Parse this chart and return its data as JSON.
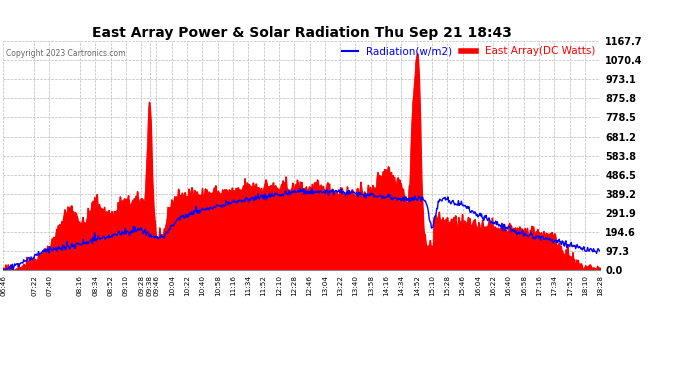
{
  "title": "East Array Power & Solar Radiation Thu Sep 21 18:43",
  "copyright": "Copyright 2023 Cartronics.com",
  "legend_radiation": "Radiation(w/m2)",
  "legend_array": "East Array(DC Watts)",
  "ylabel_right_values": [
    1167.7,
    1070.4,
    973.1,
    875.8,
    778.5,
    681.2,
    583.8,
    486.5,
    389.2,
    291.9,
    194.6,
    97.3,
    0.0
  ],
  "ymax": 1167.7,
  "ymin": 0.0,
  "background_color": "#ffffff",
  "plot_bg_color": "#ffffff",
  "grid_color": "#bbbbbb",
  "fill_color": "#ff0000",
  "line_color_radiation": "#0000ff",
  "line_color_array": "#ff0000",
  "title_color": "#000000",
  "copyright_color": "#666666",
  "x_labels": [
    "06:46",
    "07:22",
    "07:40",
    "08:16",
    "08:34",
    "08:52",
    "09:10",
    "09:28",
    "09:38",
    "09:46",
    "10:04",
    "10:22",
    "10:40",
    "10:58",
    "11:16",
    "11:34",
    "11:52",
    "12:10",
    "12:28",
    "12:46",
    "13:04",
    "13:22",
    "13:40",
    "13:58",
    "14:16",
    "14:34",
    "14:52",
    "15:10",
    "15:28",
    "15:46",
    "16:04",
    "16:22",
    "16:40",
    "16:58",
    "17:16",
    "17:34",
    "17:52",
    "18:10",
    "18:28"
  ]
}
